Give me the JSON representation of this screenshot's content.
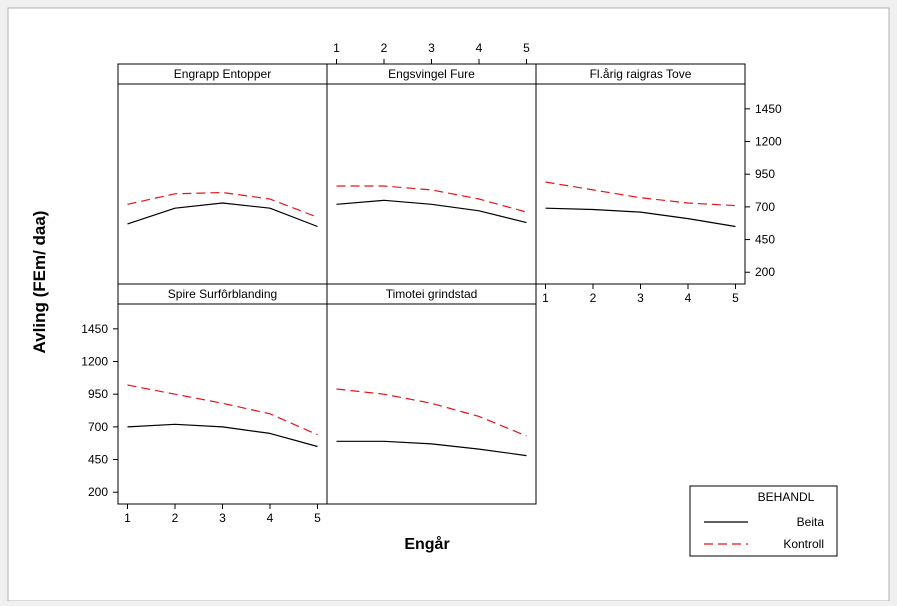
{
  "chart_data": {
    "type": "line",
    "ylabel": "Avling (FEm/ daa)",
    "xlabel": "Engår",
    "x": [
      1,
      2,
      3,
      4,
      5
    ],
    "xticks": [
      "1",
      "2",
      "3",
      "4",
      "5"
    ],
    "yticks": [
      200,
      450,
      700,
      950,
      1200,
      1450
    ],
    "ylim": [
      110,
      1640
    ],
    "xlim": [
      0.8,
      5.2
    ],
    "legend": {
      "title": "BEHANDL",
      "entries": [
        {
          "name": "Beita",
          "color": "#000000",
          "dash": "solid"
        },
        {
          "name": "Kontroll",
          "color": "#e8141a",
          "dash": "dashed"
        }
      ],
      "position": "bottom-right"
    },
    "panels": [
      {
        "title": "Engrapp Entopper",
        "series": [
          {
            "name": "Beita",
            "values": [
              570,
              690,
              730,
              690,
              550
            ]
          },
          {
            "name": "Kontroll",
            "values": [
              720,
              800,
              810,
              760,
              620
            ]
          }
        ]
      },
      {
        "title": "Engsvingel Fure",
        "series": [
          {
            "name": "Beita",
            "values": [
              720,
              750,
              720,
              670,
              580
            ]
          },
          {
            "name": "Kontroll",
            "values": [
              860,
              860,
              830,
              760,
              660
            ]
          }
        ]
      },
      {
        "title": "Fl.årig raigras Tove",
        "series": [
          {
            "name": "Beita",
            "values": [
              690,
              680,
              660,
              610,
              550
            ]
          },
          {
            "name": "Kontroll",
            "values": [
              890,
              830,
              770,
              730,
              710
            ]
          }
        ]
      },
      {
        "title": "Spire Surfôrblanding",
        "series": [
          {
            "name": "Beita",
            "values": [
              700,
              720,
              700,
              650,
              550
            ]
          },
          {
            "name": "Kontroll",
            "values": [
              1020,
              950,
              880,
              800,
              640
            ]
          }
        ]
      },
      {
        "title": "Timotei grindstad",
        "series": [
          {
            "name": "Beita",
            "values": [
              590,
              590,
              570,
              530,
              480
            ]
          },
          {
            "name": "Kontroll",
            "values": [
              990,
              950,
              880,
              780,
              630
            ]
          }
        ]
      }
    ]
  }
}
